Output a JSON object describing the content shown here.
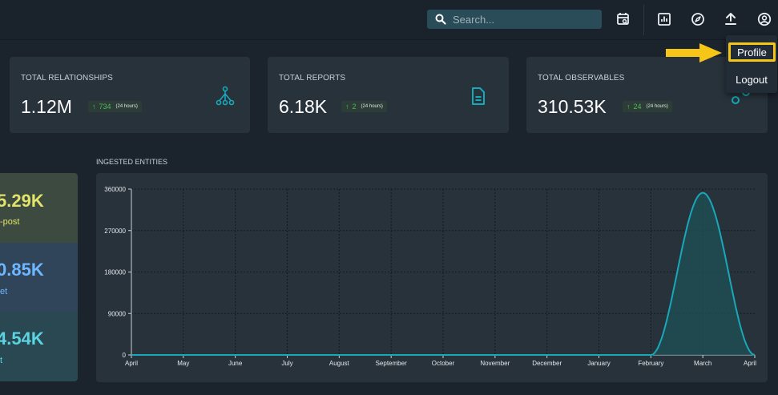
{
  "topbar": {
    "search": {
      "placeholder": "Search...",
      "icon": "search-icon"
    },
    "icons": [
      "calendar-search-icon",
      "bar-chart-icon",
      "compass-icon",
      "upload-icon",
      "user-circle-icon"
    ]
  },
  "user_menu": {
    "items": [
      {
        "label": "Profile",
        "highlighted": true
      },
      {
        "label": "Logout"
      }
    ],
    "highlight_color": "#f5c518"
  },
  "cards": [
    {
      "label": "TOTAL RELATIONSHIPS",
      "value": "1.12M",
      "delta": "734",
      "period": "(24 hours)",
      "icon": "relationships-icon"
    },
    {
      "label": "TOTAL REPORTS",
      "value": "6.18K",
      "delta": "2",
      "period": "(24 hours)",
      "icon": "document-icon"
    },
    {
      "label": "TOTAL OBSERVABLES",
      "value": "310.53K",
      "delta": "24",
      "period": "(24 hours)",
      "icon": "observables-icon"
    }
  ],
  "left_panel": [
    {
      "value": "5.29K",
      "label": "-post"
    },
    {
      "value": "0.85K",
      "label": "et"
    },
    {
      "value": "4.54K",
      "label": "t"
    }
  ],
  "chart": {
    "title": "INGESTED ENTITIES"
  },
  "chart_data": {
    "type": "area",
    "title": "INGESTED ENTITIES",
    "xlabel": "",
    "ylabel": "",
    "x": [
      "April",
      "May",
      "June",
      "July",
      "August",
      "September",
      "October",
      "November",
      "December",
      "January",
      "February",
      "March",
      "April"
    ],
    "y": [
      0,
      0,
      0,
      0,
      0,
      0,
      0,
      0,
      0,
      0,
      0,
      352000,
      0
    ],
    "yticks": [
      0,
      90000,
      180000,
      270000,
      360000
    ],
    "ylim": [
      0,
      360000
    ],
    "grid": true,
    "colors": {
      "line": "#19a8b8",
      "fill": "#1f4d55"
    }
  },
  "colors": {
    "accent": "#19a8b8",
    "positive": "#53b75a",
    "background": "#1b232d",
    "card": "#27323b"
  }
}
